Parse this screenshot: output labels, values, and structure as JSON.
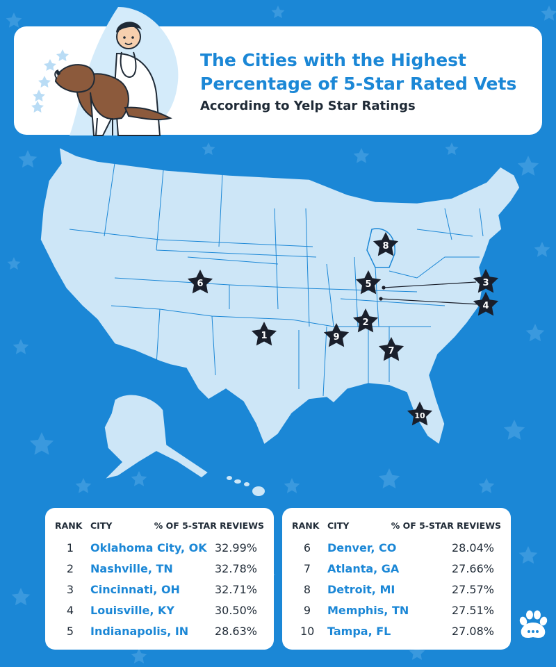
{
  "header": {
    "title": "The Cities with the Highest\nPercentage of 5-Star Rated Vets",
    "subtitle": "According to Yelp Star Ratings"
  },
  "colors": {
    "background": "#1b87d6",
    "map_land": "#cde6f7",
    "map_border": "#1b87d6",
    "marker": "#1a1f2b",
    "accent": "#1b87d6"
  },
  "map": {
    "markers": [
      {
        "rank": "1",
        "city": "Oklahoma City, OK"
      },
      {
        "rank": "2",
        "city": "Nashville, TN"
      },
      {
        "rank": "3",
        "city": "Cincinnati, OH"
      },
      {
        "rank": "4",
        "city": "Louisville, KY"
      },
      {
        "rank": "5",
        "city": "Indianapolis, IN"
      },
      {
        "rank": "6",
        "city": "Denver, CO"
      },
      {
        "rank": "7",
        "city": "Atlanta, GA"
      },
      {
        "rank": "8",
        "city": "Detroit, MI"
      },
      {
        "rank": "9",
        "city": "Memphis, TN"
      },
      {
        "rank": "10",
        "city": "Tampa, FL"
      }
    ]
  },
  "tables": {
    "left": {
      "headers": {
        "rank": "RANK",
        "city": "CITY",
        "pct": "% OF 5-STAR REVIEWS"
      },
      "rows": [
        {
          "rank": "1",
          "city": "Oklahoma City, OK",
          "pct": "32.99%"
        },
        {
          "rank": "2",
          "city": "Nashville, TN",
          "pct": "32.78%"
        },
        {
          "rank": "3",
          "city": "Cincinnati, OH",
          "pct": "32.71%"
        },
        {
          "rank": "4",
          "city": "Louisville, KY",
          "pct": "30.50%"
        },
        {
          "rank": "5",
          "city": "Indianapolis, IN",
          "pct": "28.63%"
        }
      ]
    },
    "right": {
      "headers": {
        "rank": "RANK",
        "city": "CITY",
        "pct": "% OF 5-STAR REVIEWS"
      },
      "rows": [
        {
          "rank": "6",
          "city": "Denver, CO",
          "pct": "28.04%"
        },
        {
          "rank": "7",
          "city": "Atlanta, GA",
          "pct": "27.66%"
        },
        {
          "rank": "8",
          "city": "Detroit, MI",
          "pct": "27.57%"
        },
        {
          "rank": "9",
          "city": "Memphis, TN",
          "pct": "27.51%"
        },
        {
          "rank": "10",
          "city": "Tampa, FL",
          "pct": "27.08%"
        }
      ]
    }
  },
  "icons": {
    "illustration": "vet-with-dog-illustration",
    "badge": "paw-chat-icon"
  }
}
